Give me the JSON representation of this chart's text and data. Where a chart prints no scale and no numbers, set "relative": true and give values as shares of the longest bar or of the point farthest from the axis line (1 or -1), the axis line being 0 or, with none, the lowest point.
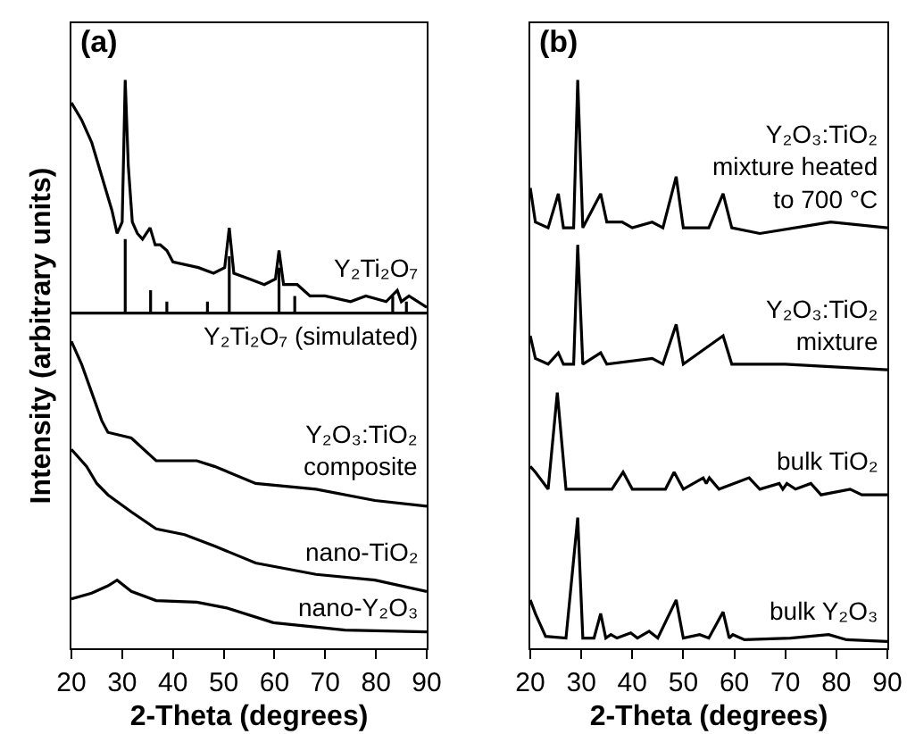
{
  "chart_data": [
    {
      "type": "line",
      "title": "(a)",
      "ylabel": "Intensity (arbitrary units)",
      "xlabel": "2-Theta (degrees)",
      "relative": true,
      "xlim": [
        20,
        90
      ],
      "xticks": [
        20,
        30,
        40,
        50,
        60,
        70,
        80,
        90
      ],
      "grid": false,
      "legend": false,
      "marker": "none",
      "color": "#000000",
      "series": [
        {
          "name": "Y₂Ti₂O₇",
          "x": [
            20,
            22,
            24,
            26,
            28,
            29,
            30,
            30.6,
            31.2,
            32,
            33,
            34,
            35.5,
            36.5,
            37.5,
            38.8,
            40,
            45,
            48,
            50.2,
            51.1,
            52,
            55,
            58,
            60.2,
            60.9,
            61.8,
            64.5,
            67,
            70,
            75,
            78,
            82,
            84.2,
            85,
            86.5,
            90
          ],
          "values": [
            0.96,
            0.93,
            0.89,
            0.83,
            0.77,
            0.73,
            0.75,
            1.0,
            0.85,
            0.75,
            0.73,
            0.72,
            0.74,
            0.71,
            0.71,
            0.7,
            0.68,
            0.67,
            0.66,
            0.67,
            0.74,
            0.66,
            0.65,
            0.64,
            0.65,
            0.7,
            0.64,
            0.64,
            0.62,
            0.62,
            0.61,
            0.62,
            0.61,
            0.63,
            0.61,
            0.62,
            0.6
          ]
        },
        {
          "name": "Y₂Ti₂O₇ (simulated)",
          "x": [
            20,
            30.6,
            30.6,
            30.6,
            35.6,
            35.6,
            35.6,
            38.8,
            38.8,
            38.8,
            46.8,
            46.8,
            46.8,
            51.1,
            51.1,
            51.1,
            60.9,
            60.9,
            60.9,
            64,
            64,
            64,
            83.3,
            83.3,
            83.3,
            86,
            86,
            86,
            90
          ],
          "values": [
            0.59,
            0.59,
            0.72,
            0.59,
            0.59,
            0.63,
            0.59,
            0.59,
            0.61,
            0.59,
            0.59,
            0.61,
            0.59,
            0.59,
            0.69,
            0.59,
            0.59,
            0.67,
            0.59,
            0.59,
            0.62,
            0.59,
            0.59,
            0.62,
            0.59,
            0.59,
            0.61,
            0.59,
            0.59
          ]
        },
        {
          "name": "Y₂O₃:TiO₂\ncomposite",
          "x": [
            20,
            22,
            24,
            26,
            27.2,
            31.8,
            36.7,
            38.8,
            44.7,
            48.2,
            56.3,
            68.2,
            79.8,
            90
          ],
          "values": [
            0.54,
            0.5,
            0.45,
            0.4,
            0.38,
            0.37,
            0.33,
            0.33,
            0.33,
            0.32,
            0.29,
            0.28,
            0.26,
            0.25
          ]
        },
        {
          "name": "nano-TiO₂",
          "x": [
            20,
            23,
            25,
            27.2,
            31.8,
            36.7,
            42.3,
            48.2,
            56.3,
            68.2,
            79.8,
            90
          ],
          "values": [
            0.35,
            0.32,
            0.29,
            0.27,
            0.24,
            0.21,
            0.2,
            0.18,
            0.15,
            0.13,
            0.12,
            0.1
          ]
        },
        {
          "name": "nano-Y₂O₃",
          "x": [
            20,
            24,
            27.2,
            29,
            31.8,
            36.7,
            44.7,
            50.6,
            59.8,
            73.9,
            90
          ],
          "values": [
            0.087,
            0.097,
            0.11,
            0.12,
            0.1,
            0.084,
            0.081,
            0.071,
            0.045,
            0.032,
            0.029
          ]
        }
      ]
    },
    {
      "type": "line",
      "title": "(b)",
      "xlabel": "2-Theta (degrees)",
      "relative": true,
      "xlim": [
        20,
        90
      ],
      "xticks": [
        20,
        30,
        40,
        50,
        60,
        70,
        80,
        90
      ],
      "grid": false,
      "legend": false,
      "marker": "none",
      "color": "#000000",
      "series": [
        {
          "name": "Y₂O₃:TiO₂\nmixture heated\nto 700 °C",
          "x": [
            20,
            21,
            23.5,
            25.5,
            26.5,
            28.5,
            29.3,
            30.3,
            33.8,
            35,
            38,
            40,
            43.9,
            46,
            48.6,
            50,
            55,
            57.8,
            59.5,
            65,
            78.9,
            90
          ],
          "values": [
            0.81,
            0.75,
            0.74,
            0.8,
            0.74,
            0.74,
            1.0,
            0.74,
            0.8,
            0.75,
            0.75,
            0.74,
            0.75,
            0.74,
            0.83,
            0.74,
            0.74,
            0.8,
            0.74,
            0.73,
            0.75,
            0.74
          ]
        },
        {
          "name": "Y₂O₃:TiO₂\nmixture",
          "x": [
            20,
            21,
            23.5,
            25.5,
            26.5,
            28.5,
            29.3,
            30.3,
            33.8,
            35,
            43.9,
            46,
            48.6,
            50,
            57.8,
            59.5,
            70,
            90
          ],
          "values": [
            0.55,
            0.51,
            0.5,
            0.52,
            0.5,
            0.5,
            0.71,
            0.5,
            0.52,
            0.5,
            0.51,
            0.5,
            0.57,
            0.5,
            0.55,
            0.5,
            0.5,
            0.49
          ]
        },
        {
          "name": "bulk TiO₂",
          "x": [
            20,
            21,
            23.5,
            25.3,
            27,
            36,
            38.2,
            40,
            46.5,
            48.2,
            50,
            53.9,
            54.5,
            55.1,
            57,
            62.9,
            65,
            68.8,
            69.5,
            70.3,
            72,
            75,
            77,
            82.7,
            85,
            90
          ],
          "values": [
            0.32,
            0.31,
            0.28,
            0.45,
            0.28,
            0.28,
            0.31,
            0.28,
            0.28,
            0.31,
            0.28,
            0.3,
            0.29,
            0.3,
            0.28,
            0.3,
            0.28,
            0.29,
            0.28,
            0.29,
            0.28,
            0.29,
            0.27,
            0.28,
            0.27,
            0.27
          ]
        },
        {
          "name": "bulk Y₂O₃",
          "x": [
            20,
            21,
            23,
            27,
            29.3,
            30.3,
            32.5,
            33.8,
            34.8,
            35.8,
            37,
            39.7,
            41,
            43.3,
            45,
            48.6,
            50,
            53.2,
            55,
            57.8,
            59,
            59.7,
            62,
            71,
            78.5,
            82,
            90
          ],
          "values": [
            0.085,
            0.061,
            0.021,
            0.018,
            0.23,
            0.018,
            0.018,
            0.061,
            0.018,
            0.024,
            0.018,
            0.027,
            0.018,
            0.03,
            0.018,
            0.085,
            0.018,
            0.024,
            0.018,
            0.064,
            0.018,
            0.024,
            0.015,
            0.018,
            0.024,
            0.015,
            0.012
          ]
        }
      ]
    }
  ]
}
